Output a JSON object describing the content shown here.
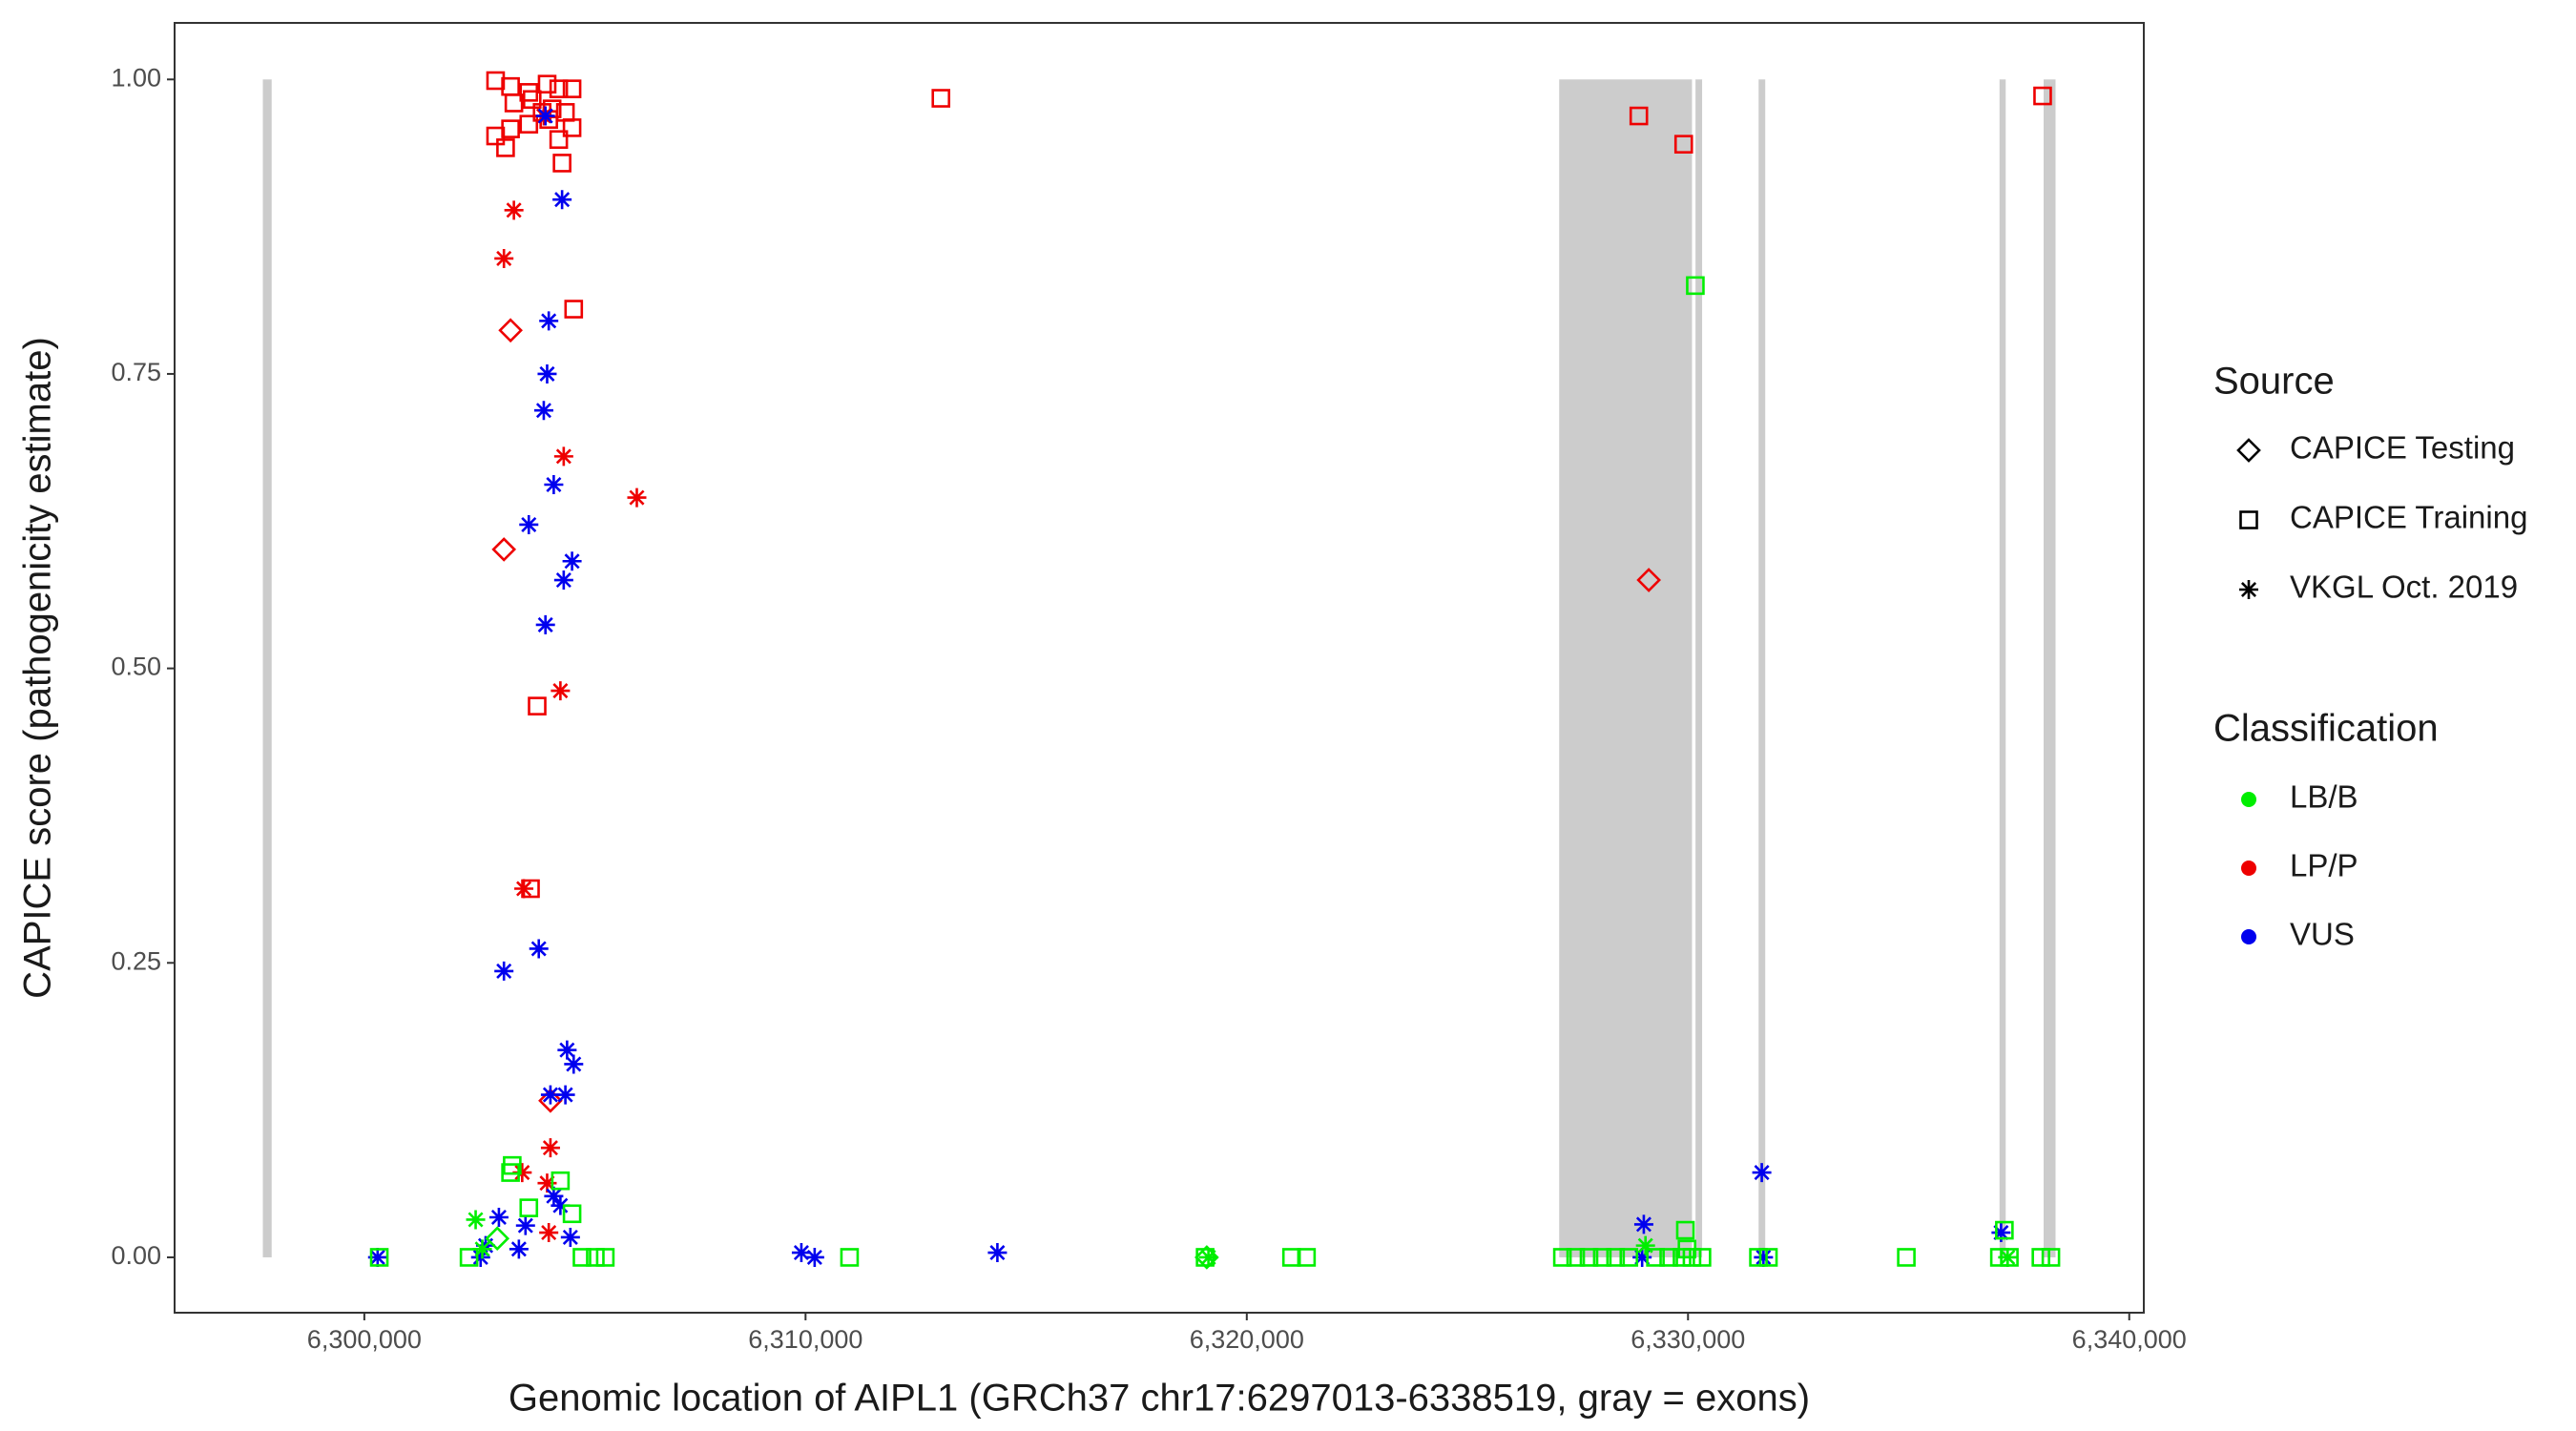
{
  "chart_data": {
    "type": "scatter",
    "x_label": "Genomic location of AIPL1 (GRCh37 chr17:6297013-6338519, gray = exons)",
    "y_label": "CAPICE score (pathogenicity estimate)",
    "xlim": [
      6295700,
      6340330
    ],
    "ylim": [
      -0.047,
      1.048
    ],
    "xticks": [
      {
        "value": 6300000,
        "label": "6,300,000"
      },
      {
        "value": 6310000,
        "label": "6,310,000"
      },
      {
        "value": 6320000,
        "label": "6,320,000"
      },
      {
        "value": 6330000,
        "label": "6,330,000"
      },
      {
        "value": 6340000,
        "label": "6,340,000"
      }
    ],
    "yticks": [
      {
        "value": 0,
        "label": "0.00"
      },
      {
        "value": 0.25,
        "label": "0.25"
      },
      {
        "value": 0.5,
        "label": "0.50"
      },
      {
        "value": 0.75,
        "label": "0.75"
      },
      {
        "value": 1,
        "label": "1.00"
      }
    ],
    "exon_color": "#cccccc",
    "exon_y": [
      0,
      1
    ],
    "exons": [
      [
        6297700,
        6297900
      ],
      [
        6327080,
        6330090
      ],
      [
        6330170,
        6330320
      ],
      [
        6331600,
        6331750
      ],
      [
        6337060,
        6337200
      ],
      [
        6338060,
        6338330
      ]
    ],
    "source_legend": {
      "title": "Source",
      "items": [
        {
          "name": "CAPICE Testing",
          "shape": "diamond"
        },
        {
          "name": "CAPICE Training",
          "shape": "square"
        },
        {
          "name": "VKGL Oct. 2019",
          "shape": "asterisk"
        }
      ]
    },
    "classification_legend": {
      "title": "Classification",
      "items": [
        {
          "name": "LB/B",
          "color": "#00ee00"
        },
        {
          "name": "LP/P",
          "color": "#ee0000"
        },
        {
          "name": "VUS",
          "color": "#0000ee"
        }
      ]
    },
    "series": [
      {
        "source": "CAPICE Training",
        "classification": "LP/P",
        "x": [
          6302975,
          6303314,
          6303728,
          6304143,
          6304406,
          6304708,
          6302975,
          6303314,
          6303201,
          6303728,
          6304180,
          6304406,
          6304708,
          6303390,
          6303804,
          6304482,
          6304745,
          6303917,
          6303766,
          6313068,
          6328885,
          6329902,
          6338037,
          6304256,
          6304030,
          6304557
        ],
        "y": [
          0.999,
          0.994,
          0.989,
          0.996,
          0.992,
          0.992,
          0.952,
          0.958,
          0.942,
          0.962,
          0.966,
          0.949,
          0.959,
          0.98,
          0.983,
          0.929,
          0.805,
          0.468,
          0.313,
          0.984,
          0.969,
          0.945,
          0.986,
          0.975,
          0.972,
          0.972
        ]
      },
      {
        "source": "CAPICE Testing",
        "classification": "LP/P",
        "x": [
          6303314,
          6303164,
          6329111,
          6304218
        ],
        "y": [
          0.787,
          0.601,
          0.575,
          0.133
        ]
      },
      {
        "source": "VKGL Oct. 2019",
        "classification": "LP/P",
        "x": [
          6303390,
          6303164,
          6304519,
          6306176,
          6304444,
          6303615,
          6304218,
          6304143,
          6303578,
          6304180,
          6304067
        ],
        "y": [
          0.889,
          0.848,
          0.68,
          0.645,
          0.481,
          0.313,
          0.093,
          0.063,
          0.072,
          0.021,
          0.969
        ]
      },
      {
        "source": "VKGL Oct. 2019",
        "classification": "VUS",
        "x": [
          6304482,
          6304180,
          6304143,
          6304067,
          6304293,
          6303728,
          6304708,
          6304519,
          6304105,
          6303954,
          6303164,
          6304595,
          6304745,
          6304218,
          6304557,
          6304293,
          6304444,
          6303050,
          6303653,
          6304670,
          6300301,
          6309905,
          6310206,
          6314348,
          6328960,
          6328998,
          6331672,
          6331710,
          6337095,
          6304105,
          6302749,
          6303503,
          6302636
        ],
        "y": [
          0.898,
          0.795,
          0.75,
          0.719,
          0.656,
          0.622,
          0.591,
          0.575,
          0.537,
          0.262,
          0.243,
          0.176,
          0.164,
          0.138,
          0.138,
          0.052,
          0.044,
          0.034,
          0.027,
          0.017,
          0,
          0.004,
          0,
          0.004,
          0,
          0.028,
          0.072,
          0,
          0.021,
          0.969,
          0.01,
          0.007,
          0
        ]
      },
      {
        "source": "CAPICE Training",
        "classification": "LB/B",
        "x": [
          6303352,
          6303314,
          6304444,
          6303728,
          6304708,
          6329940,
          6330166,
          6337170,
          6329977,
          6327153,
          6327454,
          6327756,
          6328057,
          6328358,
          6328659,
          6329262,
          6329563,
          6329864,
          6330090,
          6330316,
          6331596,
          6331822,
          6334948,
          6337057,
          6337283,
          6337998,
          6338224,
          6310997,
          6319056,
          6321014,
          6321353,
          6302373,
          6304933,
          6305235,
          6305461,
          6300339
        ],
        "y": [
          0.078,
          0.072,
          0.065,
          0.042,
          0.037,
          0.023,
          0.825,
          0.023,
          0.007,
          0,
          0,
          0,
          0,
          0,
          0,
          0,
          0,
          0,
          0,
          0,
          0,
          0,
          0,
          0,
          0,
          0,
          0,
          0,
          0,
          0,
          0,
          0,
          0,
          0,
          0,
          0
        ]
      },
      {
        "source": "VKGL Oct. 2019",
        "classification": "LB/B",
        "x": [
          6302523,
          6302674,
          6319131,
          6329036,
          6337245
        ],
        "y": [
          0.032,
          0.007,
          0,
          0.01,
          0
        ]
      },
      {
        "source": "CAPICE Testing",
        "classification": "LB/B",
        "x": [
          6303013,
          6319093
        ],
        "y": [
          0.016,
          0
        ]
      }
    ]
  }
}
